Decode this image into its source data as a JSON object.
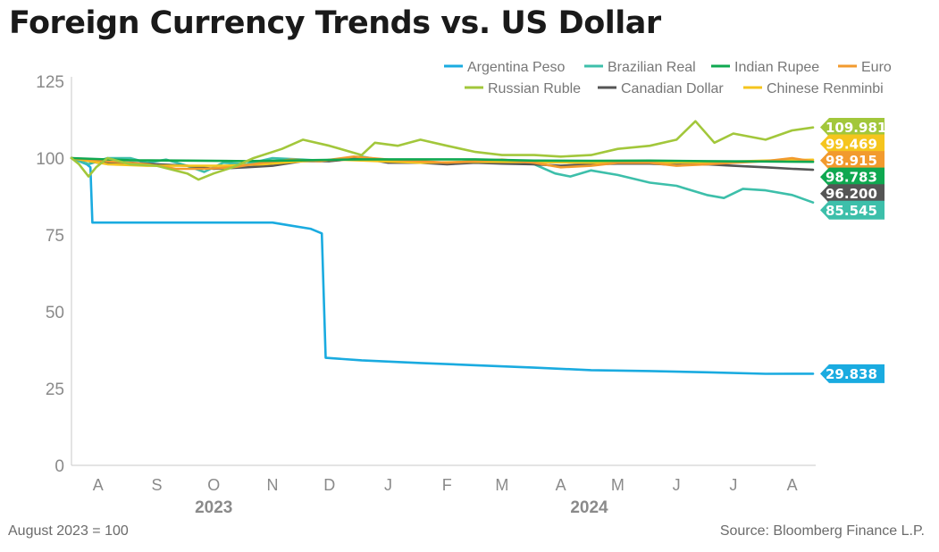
{
  "title": "Foreign Currency Trends vs. US Dollar",
  "footnote": "August 2023 = 100",
  "source": "Source: Bloomberg Finance L.P.",
  "chart_data": {
    "type": "line",
    "title": "Foreign Currency Trends vs. US Dollar",
    "xlabel": "",
    "ylabel": "",
    "ylim": [
      0,
      125
    ],
    "yticks": [
      0,
      25,
      50,
      75,
      100,
      125
    ],
    "xlim": [
      "2023-08-01",
      "2024-08-26"
    ],
    "month_ticks": [
      {
        "label": "A",
        "date": "2023-08-15"
      },
      {
        "label": "S",
        "date": "2023-09-15"
      },
      {
        "label": "O",
        "date": "2023-10-15"
      },
      {
        "label": "N",
        "date": "2023-11-15"
      },
      {
        "label": "D",
        "date": "2023-12-15"
      },
      {
        "label": "J",
        "date": "2024-01-15"
      },
      {
        "label": "F",
        "date": "2024-02-15"
      },
      {
        "label": "M",
        "date": "2024-03-15"
      },
      {
        "label": "A",
        "date": "2024-04-15"
      },
      {
        "label": "M",
        "date": "2024-05-15"
      },
      {
        "label": "J",
        "date": "2024-06-15"
      },
      {
        "label": "J",
        "date": "2024-07-15"
      },
      {
        "label": "A",
        "date": "2024-08-15"
      }
    ],
    "year_labels": [
      {
        "label": "2023",
        "date": "2023-10-15"
      },
      {
        "label": "2024",
        "date": "2024-04-30"
      }
    ],
    "grid": false,
    "legend_position": "top-right",
    "series": [
      {
        "name": "Argentina Peso",
        "color": "#1aabe0",
        "end_label": "29.838",
        "points": [
          [
            "2023-08-01",
            100
          ],
          [
            "2023-08-05",
            99
          ],
          [
            "2023-08-09",
            98
          ],
          [
            "2023-08-11",
            97
          ],
          [
            "2023-08-12",
            79
          ],
          [
            "2023-08-20",
            79
          ],
          [
            "2023-09-15",
            79
          ],
          [
            "2023-10-15",
            79
          ],
          [
            "2023-11-15",
            79
          ],
          [
            "2023-11-25",
            78
          ],
          [
            "2023-12-05",
            77
          ],
          [
            "2023-12-11",
            75.5
          ],
          [
            "2023-12-13",
            35
          ],
          [
            "2024-01-01",
            34.2
          ],
          [
            "2024-02-01",
            33.3
          ],
          [
            "2024-03-01",
            32.6
          ],
          [
            "2024-04-01",
            31.8
          ],
          [
            "2024-05-01",
            31
          ],
          [
            "2024-06-01",
            30.7
          ],
          [
            "2024-07-01",
            30.3
          ],
          [
            "2024-08-01",
            29.8
          ],
          [
            "2024-08-26",
            29.838
          ]
        ]
      },
      {
        "name": "Brazilian Real",
        "color": "#3dbfaa",
        "end_label": "85.545",
        "points": [
          [
            "2023-08-01",
            100
          ],
          [
            "2023-08-10",
            98
          ],
          [
            "2023-08-20",
            100
          ],
          [
            "2023-09-01",
            100
          ],
          [
            "2023-09-10",
            98.5
          ],
          [
            "2023-09-20",
            99.5
          ],
          [
            "2023-10-01",
            97.5
          ],
          [
            "2023-10-10",
            95.5
          ],
          [
            "2023-10-20",
            98.5
          ],
          [
            "2023-11-01",
            98
          ],
          [
            "2023-11-15",
            100
          ],
          [
            "2023-12-01",
            99.5
          ],
          [
            "2023-12-15",
            99
          ],
          [
            "2024-01-01",
            100.5
          ],
          [
            "2024-01-15",
            99
          ],
          [
            "2024-02-01",
            98.5
          ],
          [
            "2024-02-15",
            98.5
          ],
          [
            "2024-03-01",
            99
          ],
          [
            "2024-03-15",
            99
          ],
          [
            "2024-04-01",
            98
          ],
          [
            "2024-04-12",
            95
          ],
          [
            "2024-04-20",
            94
          ],
          [
            "2024-05-01",
            96
          ],
          [
            "2024-05-15",
            94.5
          ],
          [
            "2024-06-01",
            92
          ],
          [
            "2024-06-15",
            91
          ],
          [
            "2024-07-01",
            88
          ],
          [
            "2024-07-10",
            87
          ],
          [
            "2024-07-20",
            90
          ],
          [
            "2024-08-01",
            89.5
          ],
          [
            "2024-08-15",
            88
          ],
          [
            "2024-08-26",
            85.545
          ]
        ]
      },
      {
        "name": "Indian Rupee",
        "color": "#0fa850",
        "end_label": "98.783",
        "points": [
          [
            "2023-08-01",
            100
          ],
          [
            "2023-09-01",
            99.3
          ],
          [
            "2023-10-01",
            99.2
          ],
          [
            "2023-11-01",
            99
          ],
          [
            "2023-12-01",
            99.3
          ],
          [
            "2024-01-01",
            99.6
          ],
          [
            "2024-02-01",
            99.6
          ],
          [
            "2024-03-01",
            99.6
          ],
          [
            "2024-04-01",
            99.2
          ],
          [
            "2024-05-01",
            99.1
          ],
          [
            "2024-06-01",
            99.2
          ],
          [
            "2024-07-01",
            99
          ],
          [
            "2024-08-01",
            98.9
          ],
          [
            "2024-08-26",
            98.783
          ]
        ]
      },
      {
        "name": "Euro",
        "color": "#f29a2e",
        "end_label": "98.915",
        "points": [
          [
            "2023-08-01",
            100
          ],
          [
            "2023-08-20",
            99
          ],
          [
            "2023-09-10",
            98
          ],
          [
            "2023-09-25",
            96.5
          ],
          [
            "2023-10-10",
            96.5
          ],
          [
            "2023-10-25",
            97
          ],
          [
            "2023-11-10",
            98.5
          ],
          [
            "2023-11-25",
            99.5
          ],
          [
            "2023-12-10",
            99
          ],
          [
            "2023-12-28",
            100.5
          ],
          [
            "2024-01-15",
            99.5
          ],
          [
            "2024-02-01",
            99
          ],
          [
            "2024-02-15",
            98.5
          ],
          [
            "2024-03-01",
            99
          ],
          [
            "2024-03-15",
            99.5
          ],
          [
            "2024-04-01",
            98.5
          ],
          [
            "2024-04-15",
            97
          ],
          [
            "2024-05-01",
            97.5
          ],
          [
            "2024-05-15",
            98.5
          ],
          [
            "2024-06-01",
            98.5
          ],
          [
            "2024-06-15",
            97.5
          ],
          [
            "2024-07-01",
            98
          ],
          [
            "2024-07-15",
            98.5
          ],
          [
            "2024-08-01",
            99
          ],
          [
            "2024-08-15",
            100
          ],
          [
            "2024-08-26",
            98.915
          ]
        ]
      },
      {
        "name": "Russian Ruble",
        "color": "#a2c73b",
        "end_label": "109.981",
        "points": [
          [
            "2023-08-01",
            100
          ],
          [
            "2023-08-05",
            98
          ],
          [
            "2023-08-10",
            94
          ],
          [
            "2023-08-14",
            97
          ],
          [
            "2023-08-20",
            100
          ],
          [
            "2023-09-01",
            98
          ],
          [
            "2023-09-15",
            97.5
          ],
          [
            "2023-10-01",
            95
          ],
          [
            "2023-10-07",
            93
          ],
          [
            "2023-10-15",
            95
          ],
          [
            "2023-10-25",
            97
          ],
          [
            "2023-11-05",
            100
          ],
          [
            "2023-11-20",
            103
          ],
          [
            "2023-12-01",
            106
          ],
          [
            "2023-12-15",
            104
          ],
          [
            "2024-01-01",
            101
          ],
          [
            "2024-01-08",
            105
          ],
          [
            "2024-01-20",
            104
          ],
          [
            "2024-02-01",
            106
          ],
          [
            "2024-02-15",
            104
          ],
          [
            "2024-03-01",
            102
          ],
          [
            "2024-03-15",
            101
          ],
          [
            "2024-04-01",
            101
          ],
          [
            "2024-04-15",
            100.5
          ],
          [
            "2024-05-01",
            101
          ],
          [
            "2024-05-15",
            103
          ],
          [
            "2024-06-01",
            104
          ],
          [
            "2024-06-15",
            106
          ],
          [
            "2024-06-25",
            112
          ],
          [
            "2024-07-05",
            105
          ],
          [
            "2024-07-15",
            108
          ],
          [
            "2024-08-01",
            106
          ],
          [
            "2024-08-15",
            109
          ],
          [
            "2024-08-26",
            109.981
          ]
        ]
      },
      {
        "name": "Canadian Dollar",
        "color": "#555555",
        "end_label": "96.200",
        "points": [
          [
            "2023-08-01",
            100
          ],
          [
            "2023-08-15",
            98.5
          ],
          [
            "2023-09-01",
            98.5
          ],
          [
            "2023-09-15",
            98
          ],
          [
            "2023-10-01",
            97.5
          ],
          [
            "2023-10-15",
            96.5
          ],
          [
            "2023-11-01",
            97
          ],
          [
            "2023-11-15",
            97.5
          ],
          [
            "2023-12-01",
            99
          ],
          [
            "2023-12-15",
            99
          ],
          [
            "2024-01-01",
            100
          ],
          [
            "2024-01-15",
            98.5
          ],
          [
            "2024-02-01",
            98.5
          ],
          [
            "2024-02-15",
            98
          ],
          [
            "2024-03-01",
            98.5
          ],
          [
            "2024-03-15",
            98.2
          ],
          [
            "2024-04-01",
            98
          ],
          [
            "2024-04-15",
            97.5
          ],
          [
            "2024-05-01",
            98
          ],
          [
            "2024-05-15",
            98.2
          ],
          [
            "2024-06-01",
            98.2
          ],
          [
            "2024-06-15",
            97.8
          ],
          [
            "2024-07-01",
            98
          ],
          [
            "2024-07-15",
            97.5
          ],
          [
            "2024-08-01",
            97
          ],
          [
            "2024-08-15",
            96.5
          ],
          [
            "2024-08-26",
            96.2
          ]
        ]
      },
      {
        "name": "Chinese Renminbi",
        "color": "#f5c51e",
        "end_label": "99.469",
        "points": [
          [
            "2023-08-01",
            100
          ],
          [
            "2023-08-20",
            98
          ],
          [
            "2023-09-10",
            97.5
          ],
          [
            "2023-10-01",
            97.5
          ],
          [
            "2023-10-20",
            97.5
          ],
          [
            "2023-11-10",
            98
          ],
          [
            "2023-12-01",
            99
          ],
          [
            "2023-12-20",
            99.5
          ],
          [
            "2024-01-10",
            99
          ],
          [
            "2024-02-01",
            98.5
          ],
          [
            "2024-03-01",
            98.8
          ],
          [
            "2024-04-01",
            98.7
          ],
          [
            "2024-05-01",
            98.5
          ],
          [
            "2024-06-01",
            98.5
          ],
          [
            "2024-07-01",
            98.6
          ],
          [
            "2024-08-01",
            99.2
          ],
          [
            "2024-08-26",
            99.469
          ]
        ]
      }
    ],
    "end_label_order": [
      "Russian Ruble",
      "Chinese Renminbi",
      "Euro",
      "Indian Rupee",
      "Canadian Dollar",
      "Brazilian Real",
      "Argentina Peso"
    ]
  }
}
